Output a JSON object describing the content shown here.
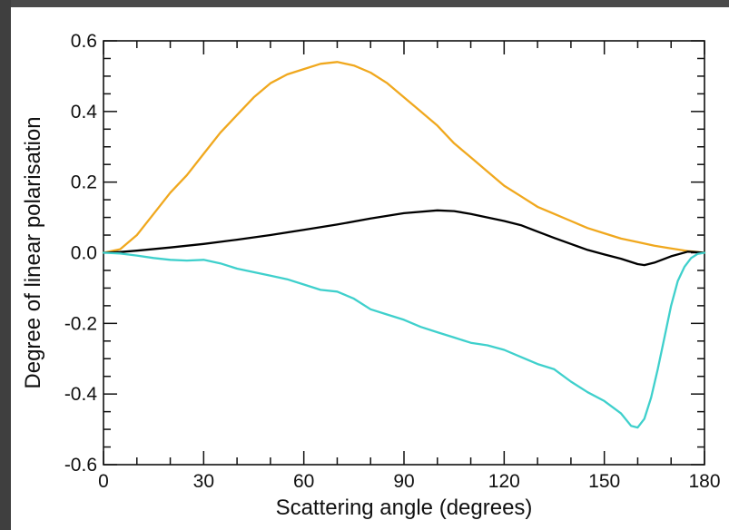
{
  "chart_data": {
    "type": "line",
    "title": "",
    "xlabel": "Scattering angle (degrees)",
    "ylabel": "Degree of linear polarisation",
    "xlim": [
      0,
      180
    ],
    "ylim": [
      -0.6,
      0.6
    ],
    "x_ticks": [
      0,
      30,
      60,
      90,
      120,
      150,
      180
    ],
    "x_tick_labels": [
      "0",
      "30",
      "60",
      "90",
      "120",
      "150",
      "180"
    ],
    "y_ticks": [
      -0.6,
      -0.4,
      -0.2,
      0.0,
      0.2,
      0.4,
      0.6
    ],
    "y_tick_labels": [
      "-0.6",
      "-0.4",
      "-0.2",
      "0.0",
      "0.2",
      "0.4",
      "0.6"
    ],
    "grid": false,
    "legend": "none",
    "series": [
      {
        "color": "#f0a81e",
        "x": [
          0,
          5,
          10,
          15,
          20,
          25,
          30,
          35,
          40,
          45,
          50,
          55,
          60,
          65,
          70,
          75,
          80,
          85,
          90,
          95,
          100,
          105,
          110,
          115,
          120,
          125,
          130,
          135,
          140,
          145,
          150,
          155,
          160,
          165,
          170,
          175,
          180
        ],
        "y": [
          0.0,
          0.01,
          0.05,
          0.11,
          0.17,
          0.22,
          0.28,
          0.34,
          0.39,
          0.44,
          0.48,
          0.505,
          0.52,
          0.535,
          0.54,
          0.53,
          0.51,
          0.48,
          0.44,
          0.4,
          0.36,
          0.31,
          0.27,
          0.23,
          0.19,
          0.16,
          0.13,
          0.11,
          0.09,
          0.07,
          0.055,
          0.04,
          0.03,
          0.02,
          0.012,
          0.005,
          0.0
        ]
      },
      {
        "color": "#000000",
        "x": [
          0,
          5,
          10,
          20,
          30,
          40,
          50,
          60,
          70,
          80,
          90,
          100,
          105,
          110,
          115,
          120,
          125,
          130,
          135,
          140,
          145,
          150,
          155,
          160,
          162,
          165,
          170,
          175,
          180
        ],
        "y": [
          0.0,
          0.002,
          0.006,
          0.015,
          0.025,
          0.037,
          0.05,
          0.065,
          0.08,
          0.097,
          0.112,
          0.12,
          0.118,
          0.11,
          0.1,
          0.09,
          0.078,
          0.06,
          0.042,
          0.025,
          0.008,
          -0.005,
          -0.017,
          -0.032,
          -0.035,
          -0.028,
          -0.01,
          0.003,
          0.0
        ]
      },
      {
        "color": "#3fd0cc",
        "x": [
          0,
          5,
          10,
          15,
          20,
          25,
          30,
          35,
          40,
          45,
          50,
          55,
          60,
          65,
          70,
          75,
          80,
          85,
          90,
          95,
          100,
          105,
          110,
          115,
          120,
          125,
          130,
          135,
          140,
          145,
          150,
          155,
          158,
          160,
          162,
          164,
          166,
          168,
          170,
          172,
          174,
          176,
          178,
          180
        ],
        "y": [
          0.0,
          -0.002,
          -0.008,
          -0.015,
          -0.02,
          -0.022,
          -0.02,
          -0.03,
          -0.045,
          -0.055,
          -0.065,
          -0.075,
          -0.09,
          -0.105,
          -0.11,
          -0.13,
          -0.16,
          -0.175,
          -0.19,
          -0.21,
          -0.225,
          -0.24,
          -0.255,
          -0.262,
          -0.275,
          -0.295,
          -0.315,
          -0.33,
          -0.365,
          -0.395,
          -0.42,
          -0.455,
          -0.49,
          -0.495,
          -0.47,
          -0.41,
          -0.33,
          -0.24,
          -0.15,
          -0.08,
          -0.04,
          -0.015,
          -0.003,
          0.0
        ]
      }
    ]
  }
}
